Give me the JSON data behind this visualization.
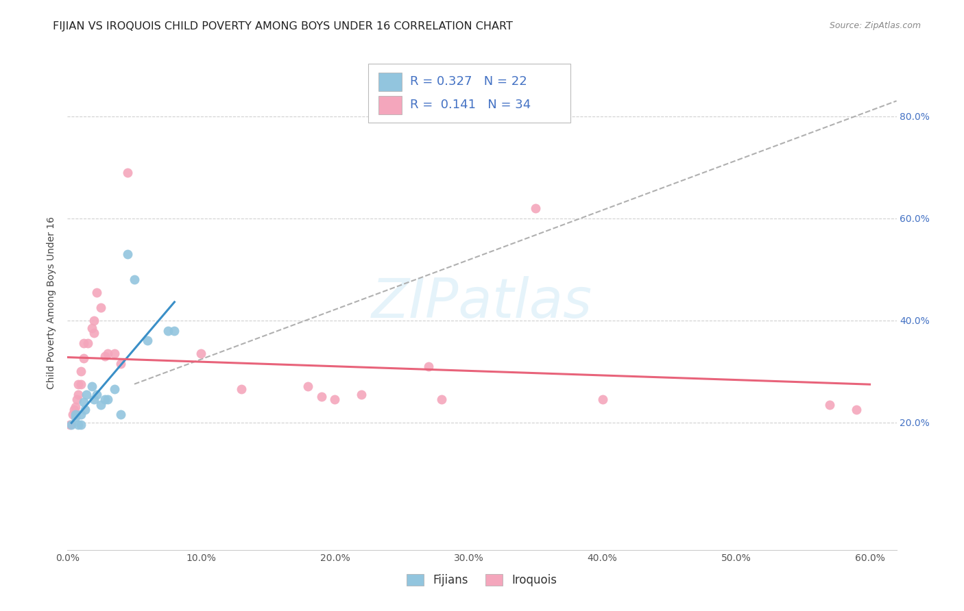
{
  "title": "FIJIAN VS IROQUOIS CHILD POVERTY AMONG BOYS UNDER 16 CORRELATION CHART",
  "source": "Source: ZipAtlas.com",
  "ylabel": "Child Poverty Among Boys Under 16",
  "xlim": [
    0.0,
    0.62
  ],
  "ylim": [
    -0.05,
    0.92
  ],
  "xtick_labels": [
    "0.0%",
    "",
    "10.0%",
    "",
    "20.0%",
    "",
    "30.0%",
    "",
    "40.0%",
    "",
    "50.0%",
    "",
    "60.0%"
  ],
  "xtick_vals": [
    0.0,
    0.05,
    0.1,
    0.15,
    0.2,
    0.25,
    0.3,
    0.35,
    0.4,
    0.45,
    0.5,
    0.55,
    0.6
  ],
  "ytick_labels": [
    "20.0%",
    "40.0%",
    "60.0%",
    "80.0%"
  ],
  "ytick_vals": [
    0.2,
    0.4,
    0.6,
    0.8
  ],
  "fijian_color": "#92c5de",
  "iroquois_color": "#f4a6bc",
  "fijian_line_color": "#3a8fc7",
  "iroquois_line_color": "#e8637a",
  "right_tick_color": "#4472c4",
  "fijian_R": 0.327,
  "fijian_N": 22,
  "iroquois_R": 0.141,
  "iroquois_N": 34,
  "fijian_scatter": [
    [
      0.003,
      0.195
    ],
    [
      0.006,
      0.215
    ],
    [
      0.006,
      0.21
    ],
    [
      0.008,
      0.195
    ],
    [
      0.01,
      0.195
    ],
    [
      0.01,
      0.215
    ],
    [
      0.012,
      0.24
    ],
    [
      0.013,
      0.225
    ],
    [
      0.014,
      0.255
    ],
    [
      0.018,
      0.27
    ],
    [
      0.02,
      0.245
    ],
    [
      0.022,
      0.255
    ],
    [
      0.025,
      0.235
    ],
    [
      0.028,
      0.245
    ],
    [
      0.03,
      0.245
    ],
    [
      0.035,
      0.265
    ],
    [
      0.04,
      0.215
    ],
    [
      0.045,
      0.53
    ],
    [
      0.05,
      0.48
    ],
    [
      0.06,
      0.36
    ],
    [
      0.075,
      0.38
    ],
    [
      0.08,
      0.38
    ]
  ],
  "iroquois_scatter": [
    [
      0.002,
      0.195
    ],
    [
      0.004,
      0.215
    ],
    [
      0.005,
      0.225
    ],
    [
      0.006,
      0.23
    ],
    [
      0.007,
      0.245
    ],
    [
      0.008,
      0.255
    ],
    [
      0.008,
      0.275
    ],
    [
      0.01,
      0.275
    ],
    [
      0.01,
      0.3
    ],
    [
      0.012,
      0.325
    ],
    [
      0.012,
      0.355
    ],
    [
      0.015,
      0.355
    ],
    [
      0.018,
      0.385
    ],
    [
      0.02,
      0.375
    ],
    [
      0.02,
      0.4
    ],
    [
      0.022,
      0.455
    ],
    [
      0.025,
      0.425
    ],
    [
      0.028,
      0.33
    ],
    [
      0.03,
      0.335
    ],
    [
      0.035,
      0.335
    ],
    [
      0.04,
      0.315
    ],
    [
      0.045,
      0.69
    ],
    [
      0.1,
      0.335
    ],
    [
      0.13,
      0.265
    ],
    [
      0.18,
      0.27
    ],
    [
      0.19,
      0.25
    ],
    [
      0.2,
      0.245
    ],
    [
      0.22,
      0.255
    ],
    [
      0.27,
      0.31
    ],
    [
      0.28,
      0.245
    ],
    [
      0.35,
      0.62
    ],
    [
      0.4,
      0.245
    ],
    [
      0.57,
      0.235
    ],
    [
      0.59,
      0.225
    ]
  ],
  "dashed_line_x": [
    0.05,
    0.62
  ],
  "dashed_line_y": [
    0.275,
    0.83
  ],
  "watermark": "ZIPatlas",
  "bg_color": "#ffffff",
  "grid_color": "#d0d0d0",
  "title_fontsize": 11.5,
  "axis_label_fontsize": 10,
  "tick_fontsize": 10,
  "legend_fontsize": 12
}
